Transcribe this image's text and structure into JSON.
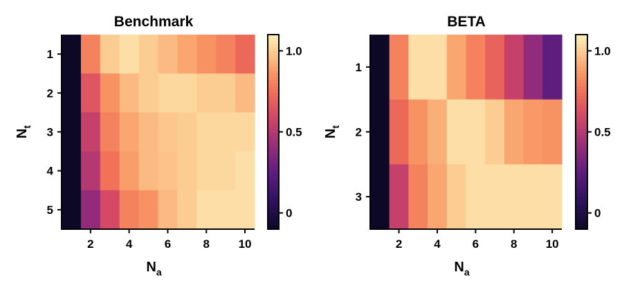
{
  "chart_data": [
    {
      "type": "heatmap",
      "title": "Benchmark",
      "xlabel": "N",
      "xlabel_sub": "a",
      "ylabel": "N",
      "ylabel_sub": "t",
      "x": [
        1,
        2,
        3,
        4,
        5,
        6,
        7,
        8,
        9,
        10
      ],
      "y": [
        1,
        2,
        3,
        4,
        5
      ],
      "x_ticks": [
        "2",
        "4",
        "6",
        "8",
        "10"
      ],
      "y_ticks": [
        "1",
        "2",
        "3",
        "4",
        "5"
      ],
      "values": [
        [
          -0.1,
          0.8,
          1.0,
          1.05,
          1.0,
          0.95,
          0.9,
          0.85,
          0.8,
          0.72
        ],
        [
          -0.1,
          0.65,
          0.85,
          0.95,
          1.0,
          1.03,
          1.03,
          1.0,
          1.0,
          0.95
        ],
        [
          -0.1,
          0.55,
          0.8,
          0.9,
          0.95,
          0.98,
          1.0,
          1.03,
          1.03,
          1.03
        ],
        [
          -0.1,
          0.5,
          0.75,
          0.88,
          0.95,
          0.97,
          1.0,
          1.03,
          1.03,
          1.05
        ],
        [
          -0.1,
          0.4,
          0.6,
          0.8,
          0.85,
          0.95,
          1.0,
          1.05,
          1.05,
          1.05
        ]
      ],
      "colorbar": {
        "min": -0.1,
        "max": 1.1,
        "ticks": [
          "0",
          "0.5",
          "1.0"
        ]
      }
    },
    {
      "type": "heatmap",
      "title": "BETA",
      "xlabel": "N",
      "xlabel_sub": "a",
      "ylabel": "N",
      "ylabel_sub": "t",
      "x": [
        1,
        2,
        3,
        4,
        5,
        6,
        7,
        8,
        9,
        10
      ],
      "y": [
        1,
        2,
        3
      ],
      "x_ticks": [
        "2",
        "4",
        "6",
        "8",
        "10"
      ],
      "y_ticks": [
        "1",
        "2",
        "3"
      ],
      "values": [
        [
          -0.1,
          0.8,
          1.05,
          1.05,
          0.9,
          0.8,
          0.7,
          0.55,
          0.4,
          0.25
        ],
        [
          -0.1,
          0.72,
          0.85,
          0.92,
          1.05,
          1.05,
          1.0,
          0.9,
          0.87,
          0.85
        ],
        [
          -0.1,
          0.55,
          0.8,
          0.9,
          1.0,
          1.05,
          1.05,
          1.05,
          1.05,
          1.05
        ]
      ],
      "colorbar": {
        "min": -0.1,
        "max": 1.1,
        "ticks": [
          "0",
          "0.5",
          "1.0"
        ]
      }
    }
  ]
}
